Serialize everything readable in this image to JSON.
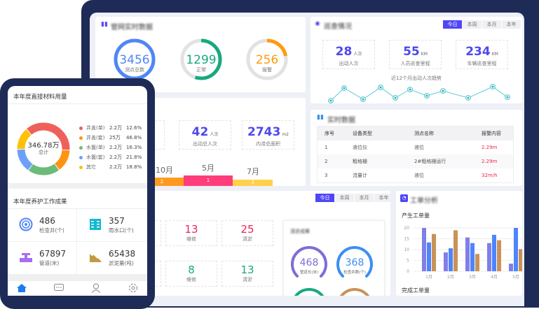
{
  "pipe_realtime": {
    "title": "管网实时数据",
    "rings": [
      {
        "value": "3456",
        "label": "测点总数",
        "progress": 1.0,
        "color": "#4f86f7"
      },
      {
        "value": "1299",
        "label": "正常",
        "progress": 0.55,
        "color": "#17a97f"
      },
      {
        "value": "256",
        "label": "报警",
        "progress": 0.22,
        "color": "#ff9a10"
      }
    ]
  },
  "patrol": {
    "title": "巡查情况",
    "tabs": [
      "今日",
      "本周",
      "本月",
      "本年"
    ],
    "active_tab": "今日",
    "stats": [
      {
        "value": "28",
        "unit": "人次",
        "label": "出动人次"
      },
      {
        "value": "55",
        "unit": "KM",
        "label": "人员巡查里程"
      },
      {
        "value": "234",
        "unit": "KM",
        "label": "车辆巡查里程"
      }
    ],
    "trend_title": "近12个月出动人次趋势",
    "line_color": "#5ec9d6"
  },
  "realtime": {
    "title": "实时数据",
    "headers": [
      "序号",
      "设备类型",
      "测点名称",
      "报警内容"
    ],
    "rows": [
      [
        "1",
        "液位仪",
        "液位",
        "2.29m"
      ],
      [
        "2",
        "粗格栅",
        "2#粗格栅运行",
        "2.29m"
      ],
      [
        "3",
        "流量计",
        "液位",
        "32m/h"
      ]
    ]
  },
  "dredge_summary": {
    "stats": [
      {
        "value": "42",
        "unit": "人次",
        "label": "出动总人次"
      },
      {
        "value": "2743",
        "unit": "m2",
        "label": "内涝总面积"
      }
    ],
    "months": [
      {
        "label": "10月",
        "count": "2",
        "color": "#ff9a1f"
      },
      {
        "label": "5月",
        "count": "1",
        "color": "#ff3d7a"
      },
      {
        "label": "7月",
        "count": "3",
        "color": "#ffd04a"
      }
    ]
  },
  "work": {
    "tabs": [
      "今日",
      "本周",
      "本月",
      "本年"
    ],
    "active_tab": "今日",
    "boxes": [
      {
        "value": "13",
        "label": "维修",
        "color": "#f0255a"
      },
      {
        "value": "25",
        "label": "清淤",
        "color": "#f0255a"
      },
      {
        "value": "8",
        "label": "维修",
        "color": "#17a97f"
      },
      {
        "value": "13",
        "label": "清淤",
        "color": "#17a97f"
      }
    ],
    "dredge_result": {
      "title": "清淤成果",
      "gauges": [
        {
          "value": "468",
          "label": "管道长(米)",
          "color": "#7b6fd6"
        },
        {
          "value": "368",
          "label": "检查井数(个)",
          "color": "#3d8ff0"
        }
      ]
    }
  },
  "work_order": {
    "title": "工单分析",
    "chart_title": "产生工单量",
    "next_title": "完成工单量"
  },
  "chart_data": {
    "type": "bar",
    "title": "产生工单量",
    "categories": [
      "1月",
      "2月",
      "3月",
      "4月",
      "5月"
    ],
    "series": [
      {
        "values": [
          20,
          8.7,
          15.6,
          13,
          3.5
        ],
        "color": "#7f7fe8"
      },
      {
        "values": [
          13.3,
          10.6,
          13,
          16.8,
          20
        ],
        "color": "#4d84ff"
      },
      {
        "values": [
          17.2,
          18.9,
          8,
          14.3,
          10.2
        ],
        "color": "#c99258"
      }
    ],
    "ylim": [
      0,
      20
    ],
    "yticks": [
      0,
      5,
      10,
      15,
      20
    ],
    "grid": true
  },
  "phone": {
    "materials": {
      "title": "本年度直接材料用量",
      "total": "346.78万",
      "total_label": "总计",
      "legend": [
        {
          "name": "井盖(单)",
          "value": "2.2万",
          "pct": "12.6%",
          "color": "#f0605a"
        },
        {
          "name": "井盖(套)",
          "value": "25万",
          "pct": "46.8%",
          "color": "#ff9410"
        },
        {
          "name": "水篦(单)",
          "value": "2.2万",
          "pct": "16.3%",
          "color": "#6cbb76"
        },
        {
          "name": "水篦(套)",
          "value": "2.2万",
          "pct": "21.8%",
          "color": "#6fa0f8"
        },
        {
          "name": "其它",
          "value": "2.2万",
          "pct": "18.8%",
          "color": "#ffc20a"
        }
      ]
    },
    "maintenance": {
      "title": "本年度养护工作成果",
      "items": [
        {
          "value": "486",
          "label": "检查井(个)",
          "icon": "manhole-icon"
        },
        {
          "value": "357",
          "label": "雨水口(个)",
          "icon": "grate-icon"
        },
        {
          "value": "67897",
          "label": "管道(米)",
          "icon": "pipe-icon"
        },
        {
          "value": "65438",
          "label": "淤泥量(吨)",
          "icon": "sludge-icon"
        }
      ]
    },
    "nav": [
      "home-icon",
      "message-icon",
      "user-icon",
      "settings-icon"
    ]
  }
}
